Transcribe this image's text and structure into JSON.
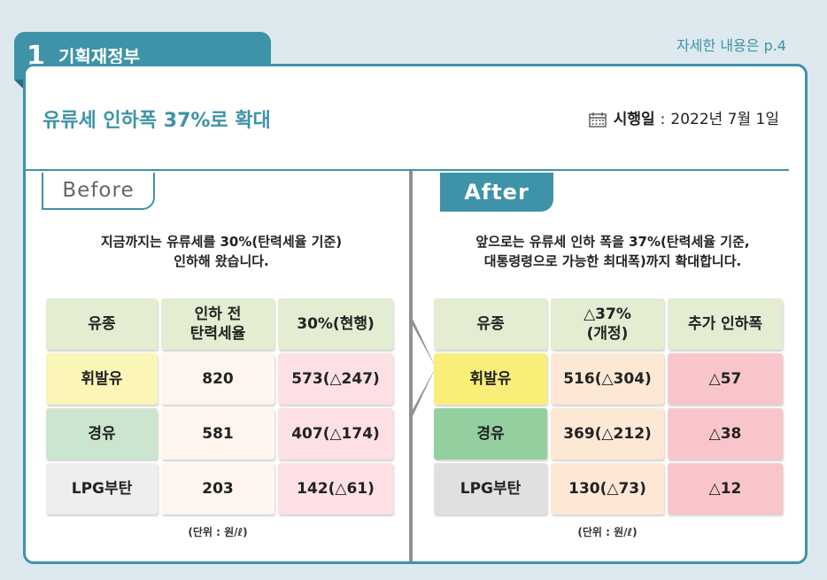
{
  "section": {
    "number": "1",
    "title": "기획재정부"
  },
  "detail_link": "자세한 내용은 p.4",
  "headline": "유류세 인하폭 37%로 확대",
  "effective": {
    "icon": "calendar-icon",
    "label": "시행일",
    "separator": ":",
    "date": "2022년 7월 1일"
  },
  "before": {
    "tab": "Before",
    "desc_line1": "지금까지는 유류세를 30%(탄력세율 기준)",
    "desc_line2": "인하해 왔습니다.",
    "headers": [
      "유종",
      "인하 전\n탄력세율",
      "30%(현행)"
    ],
    "rows": [
      [
        "휘발유",
        "820",
        "573(△247)"
      ],
      [
        "경유",
        "581",
        "407(△174)"
      ],
      [
        "LPG부탄",
        "203",
        "142(△61)"
      ]
    ],
    "unit": "(단위 : 원/ℓ)"
  },
  "after": {
    "tab": "After",
    "desc_line1": "앞으로는 유류세 인하 폭을 37%(탄력세율 기준,",
    "desc_line2": "대통령령으로 가능한 최대폭)까지 확대합니다.",
    "headers": [
      "유종",
      "△37%\n(개정)",
      "추가 인하폭"
    ],
    "rows": [
      [
        "휘발유",
        "516(△304)",
        "△57"
      ],
      [
        "경유",
        "369(△212)",
        "△38"
      ],
      [
        "LPG부탄",
        "130(△73)",
        "△12"
      ]
    ],
    "unit": "(단위 : 원/ℓ)"
  },
  "colors": {
    "accent": "#3e93a8",
    "header_bg": "#e2edd2",
    "gasoline_bg": "#fbf5b7",
    "diesel_bg": "#cbe5ce",
    "lpg_bg": "#eeeeee",
    "before_value_bg": "#fef6ee",
    "before_current_bg": "#fde0e4",
    "after_gasoline_bg": "#f9ef78",
    "after_diesel_bg": "#94cfa0",
    "after_lpg_bg": "#e0e0e0",
    "after_value_bg": "#fde8d6",
    "after_extra_bg": "#f8c6ca"
  }
}
